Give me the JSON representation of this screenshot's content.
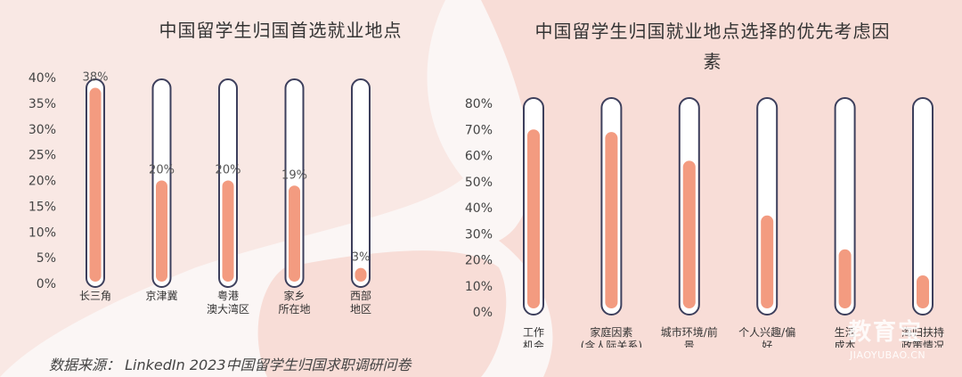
{
  "chart_data": [
    {
      "type": "bar",
      "title": "中国留学生归国首选就业地点",
      "categories": [
        [
          "长三角"
        ],
        [
          "京津冀"
        ],
        [
          "粤港",
          "澳大湾区"
        ],
        [
          "家乡",
          "所在地"
        ],
        [
          "西部",
          "地区"
        ]
      ],
      "values": [
        38,
        20,
        20,
        19,
        3
      ],
      "value_labels": [
        "38%",
        "20%",
        "20%",
        "19%",
        "3%"
      ],
      "yticks": [
        "0%",
        "5%",
        "10%",
        "15%",
        "20%",
        "25%",
        "30%",
        "35%",
        "40%"
      ],
      "ylim": [
        0,
        40
      ],
      "grid": false,
      "legend": "none"
    },
    {
      "type": "bar",
      "title": "中国留学生归国就业地点选择的优先考虑因素",
      "categories": [
        [
          "工作",
          "机会"
        ],
        [
          "家庭因素",
          "(含人际关系)"
        ],
        [
          "城市环境/前",
          "景"
        ],
        [
          "个人兴趣/偏",
          "好"
        ],
        [
          "生活",
          "成本"
        ],
        [
          "海归扶持",
          "政策情况"
        ]
      ],
      "values": [
        70,
        69,
        58,
        37,
        24,
        14
      ],
      "yticks": [
        "0%",
        "10%",
        "20%",
        "30%",
        "40%",
        "50%",
        "60%",
        "70%",
        "80%"
      ],
      "ylim": [
        0,
        80
      ],
      "grid": false,
      "legend": "none"
    }
  ],
  "source": "数据来源：  LinkedIn 2023中国留学生归国求职调研问卷",
  "watermark": {
    "main": "教育宝",
    "sub": "JIAOYUBAO.CN"
  },
  "colors": {
    "bar_fill": "#f39b80",
    "tube_stroke": "#3d3f5c",
    "tube_fill": "#ffffff",
    "background": "#fbf6f5",
    "blob": "#f8ddd7"
  }
}
